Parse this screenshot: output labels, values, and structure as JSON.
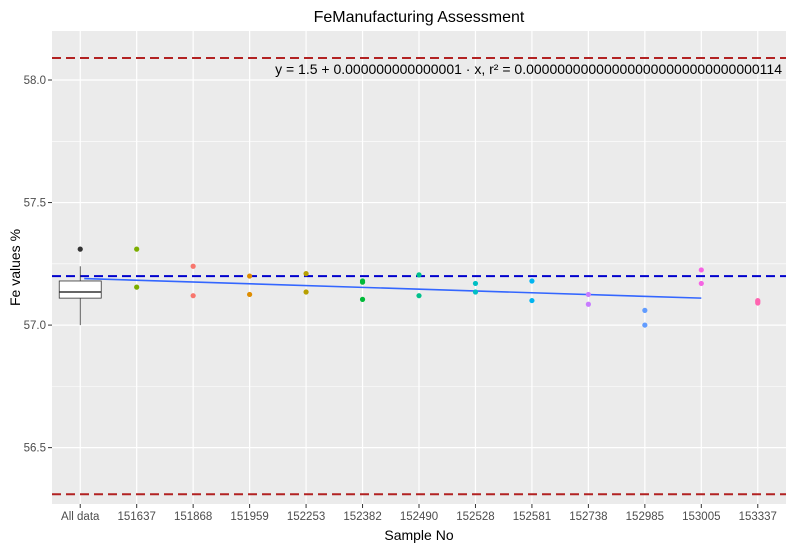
{
  "chart_data": {
    "type": "scatter",
    "title": "FeManufacturing Assessment",
    "xlabel": "Sample No",
    "ylabel": "Fe values %",
    "categories": [
      "All data",
      "151637",
      "151868",
      "151959",
      "152253",
      "152382",
      "152490",
      "152528",
      "152581",
      "152738",
      "152985",
      "153005",
      "153337"
    ],
    "ylim": [
      56.27,
      58.2
    ],
    "yticks": [
      56.5,
      57.0,
      57.5,
      58.0
    ],
    "ytick_labels": [
      "56.5",
      "57.0",
      "57.5",
      "58.0"
    ],
    "grid": true,
    "legend": "none",
    "equation_text": "y = 1.5 + 0.000000000000001 · x,  r² = 0.000000000000000000000000000000114",
    "reference_lines": [
      {
        "value": 58.09,
        "color": "#b22222",
        "style": "dashed"
      },
      {
        "value": 57.2,
        "color": "#0000cd",
        "style": "dashed"
      },
      {
        "value": 56.31,
        "color": "#b22222",
        "style": "dashed"
      }
    ],
    "boxplot": {
      "category": "All data",
      "whisker_low": 57.0,
      "q1": 57.11,
      "median": 57.135,
      "q3": 57.18,
      "whisker_high": 57.24,
      "outliers": [
        57.31
      ]
    },
    "series": [
      {
        "category": "151637",
        "values": [
          57.31,
          57.155
        ],
        "color": "#7cae00"
      },
      {
        "category": "151868",
        "values": [
          57.24,
          57.12
        ],
        "color": "#f8766d"
      },
      {
        "category": "151959",
        "values": [
          57.2,
          57.125
        ],
        "color": "#de8c00"
      },
      {
        "category": "152253",
        "values": [
          57.21,
          57.135
        ],
        "color": "#b79f00"
      },
      {
        "category": "152382",
        "values": [
          57.18,
          57.175,
          57.105
        ],
        "color": "#00ba38"
      },
      {
        "category": "152490",
        "values": [
          57.205,
          57.12
        ],
        "color": "#00c08b"
      },
      {
        "category": "152528",
        "values": [
          57.17,
          57.135
        ],
        "color": "#00bfc4"
      },
      {
        "category": "152581",
        "values": [
          57.18,
          57.1
        ],
        "color": "#00b4f0"
      },
      {
        "category": "152738",
        "values": [
          57.125,
          57.085
        ],
        "color": "#c77cff"
      },
      {
        "category": "152985",
        "values": [
          57.06,
          57.0
        ],
        "color": "#619cff"
      },
      {
        "category": "153005",
        "values": [
          57.225,
          57.17
        ],
        "color": "#f564e3"
      },
      {
        "category": "153337",
        "values": [
          57.1,
          57.095,
          57.09
        ],
        "color": "#ff64b0"
      }
    ],
    "trend_line": {
      "color": "#3366ff",
      "x_start": "All data",
      "x_end": "153005",
      "y_start": 57.19,
      "y_end": 57.11
    },
    "colors": {
      "panel": "#ebebeb",
      "grid": "#ffffff",
      "box_outlier": "#333333"
    }
  }
}
